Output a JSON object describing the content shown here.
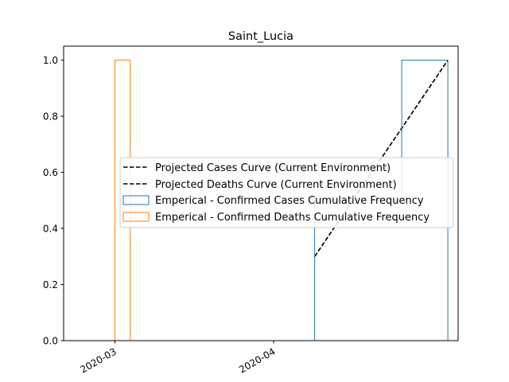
{
  "chart_data": {
    "type": "line",
    "title": "Saint_Lucia",
    "xlabel": "",
    "ylabel": "",
    "x_axis_kind": "date",
    "xlim": [
      "2020-02-20",
      "2020-05-07"
    ],
    "ylim": [
      0.0,
      1.05
    ],
    "x_ticks": [
      {
        "date": "2020-03-01",
        "label": "2020-03"
      },
      {
        "date": "2020-04-01",
        "label": "2020-04"
      }
    ],
    "y_ticks": [
      {
        "value": 0.0,
        "label": "0.0"
      },
      {
        "value": 0.2,
        "label": "0.2"
      },
      {
        "value": 0.4,
        "label": "0.4"
      },
      {
        "value": 0.6,
        "label": "0.6"
      },
      {
        "value": 0.8,
        "label": "0.8"
      },
      {
        "value": 1.0,
        "label": "1.0"
      }
    ],
    "grid": false,
    "legend_placement": "center-right",
    "series": [
      {
        "name": "Projected Cases Curve (Current Environment)",
        "kind": "dashed-line",
        "color": "#000000",
        "points": [
          [
            "2020-04-09",
            0.3
          ],
          [
            "2020-05-05",
            1.0
          ]
        ]
      },
      {
        "name": "Projected Deaths Curve (Current Environment)",
        "kind": "dashed-line",
        "color": "#000000",
        "points": [
          [
            "2020-04-09",
            0.3
          ],
          [
            "2020-05-05",
            1.0
          ]
        ]
      },
      {
        "name": "Emperical - Confirmed Cases Cumulative Frequency",
        "kind": "step",
        "color": "#1f77b4",
        "points": [
          [
            "2020-04-09",
            0.0
          ],
          [
            "2020-04-09",
            0.5
          ],
          [
            "2020-04-26",
            0.5
          ],
          [
            "2020-04-26",
            1.0
          ],
          [
            "2020-05-05",
            1.0
          ],
          [
            "2020-05-05",
            0.0
          ]
        ]
      },
      {
        "name": "Emperical - Confirmed Deaths Cumulative Frequency",
        "kind": "step",
        "color": "#ff7f0e",
        "points": [
          [
            "2020-02-26",
            0.0
          ],
          [
            "2020-03-01",
            0.0
          ],
          [
            "2020-03-01",
            1.0
          ],
          [
            "2020-03-04",
            1.0
          ],
          [
            "2020-03-04",
            0.0
          ]
        ]
      }
    ]
  }
}
